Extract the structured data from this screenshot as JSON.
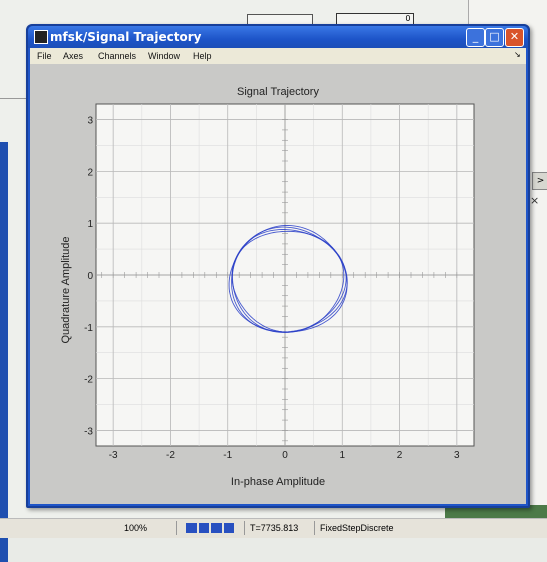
{
  "window": {
    "title": "mfsk/Signal Trajectory",
    "buttons": {
      "minimize": "_",
      "maximize": "□",
      "close": "✕"
    }
  },
  "menubar": {
    "items": [
      "File",
      "Axes",
      "Channels",
      "Window",
      "Help"
    ]
  },
  "plot": {
    "title": "Signal Trajectory",
    "xlabel": "In-phase Amplitude",
    "ylabel": "Quadrature Amplitude"
  },
  "chart_data": {
    "type": "line",
    "title": "Signal Trajectory",
    "xlabel": "In-phase Amplitude",
    "ylabel": "Quadrature Amplitude",
    "xlim": [
      -3.3,
      3.3
    ],
    "ylim": [
      -3.3,
      3.3
    ],
    "xticks": [
      -3,
      -2,
      -1,
      0,
      1,
      2,
      3
    ],
    "yticks": [
      -3,
      -2,
      -1,
      0,
      1,
      2,
      3
    ],
    "grid": true,
    "series": [
      {
        "trajectory": "circle",
        "center": [
          0.05,
          -0.1
        ],
        "radius": 1.0,
        "color": "#2a3fc8"
      }
    ]
  },
  "background": {
    "block_value": "0",
    "right_arrow": ">",
    "right_close": "×",
    "status": {
      "zoom": "100%",
      "time": "T=7735.813",
      "solver": "FixedStepDiscrete"
    }
  }
}
